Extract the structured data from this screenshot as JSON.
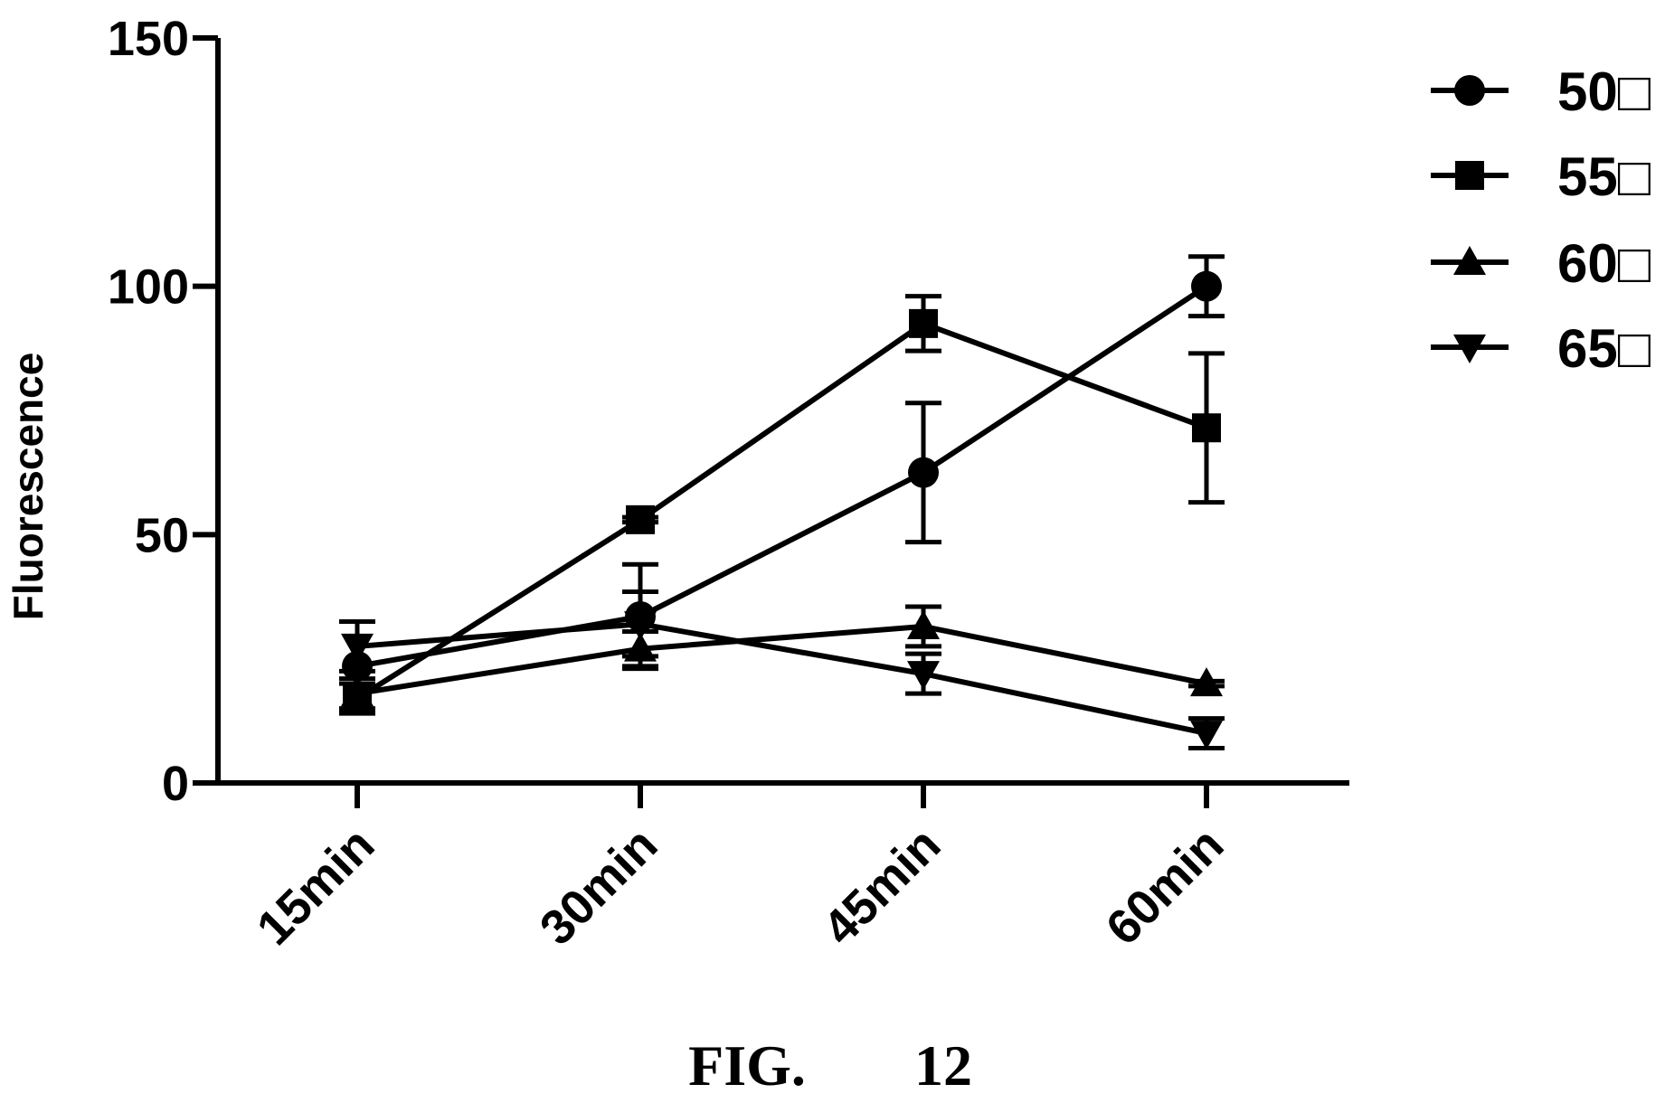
{
  "caption": {
    "fig": "FIG.",
    "number": "12"
  },
  "chart_data": {
    "type": "line",
    "ylabel": "Fluorescence",
    "xlabel": "",
    "categories": [
      "15min",
      "30min",
      "45min",
      "60min"
    ],
    "ylim": [
      0,
      150
    ],
    "yticks": [
      0,
      50,
      100,
      150
    ],
    "grid": false,
    "legend_position": "top-right",
    "series": [
      {
        "name": "50□",
        "marker": "circle",
        "values": [
          23.5,
          33.5,
          62.5,
          100
        ],
        "errors": [
          9,
          10.5,
          14,
          6
        ]
      },
      {
        "name": "55□",
        "marker": "square",
        "values": [
          17,
          53,
          92.5,
          71.5
        ],
        "errors": [
          3,
          0.5,
          5.5,
          15
        ]
      },
      {
        "name": "60□",
        "marker": "triangle-up",
        "values": [
          18,
          27,
          31.5,
          20
        ],
        "errors": [
          3,
          3.5,
          4,
          0.5
        ]
      },
      {
        "name": "65□",
        "marker": "triangle-down",
        "values": [
          27.5,
          32,
          22,
          10
        ],
        "errors": [
          5,
          6.5,
          4,
          3
        ]
      }
    ]
  }
}
